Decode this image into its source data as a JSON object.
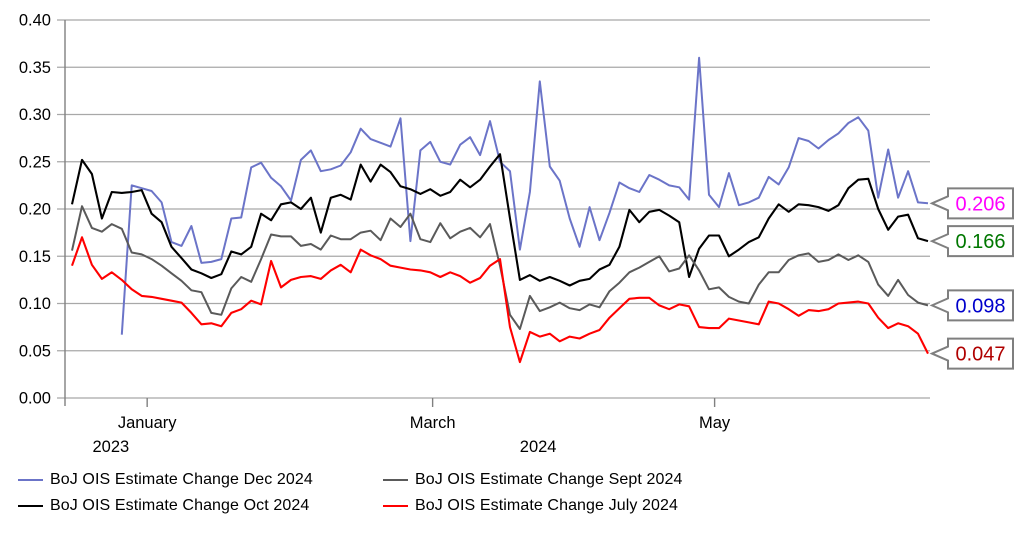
{
  "chart_data": {
    "type": "line",
    "title": "",
    "grid": true,
    "legend_position": "bottom",
    "y_axis": {
      "min": 0.0,
      "max": 0.4,
      "step": 0.05,
      "tick_labels": [
        "0.00",
        "0.05",
        "0.10",
        "0.15",
        "0.20",
        "0.25",
        "0.30",
        "0.35",
        "0.40"
      ]
    },
    "x_axis": {
      "month_ticks": [
        {
          "label": "January",
          "pos": 0.095
        },
        {
          "label": "March",
          "pos": 0.425
        },
        {
          "label": "May",
          "pos": 0.751
        }
      ],
      "year_labels": [
        {
          "label": "2023",
          "pos": 0.053
        },
        {
          "label": "2024",
          "pos": 0.547
        }
      ]
    },
    "series": [
      {
        "name": "BoJ OIS Estimate Change Dec 2024",
        "color": "#6B74C8",
        "end_label": "0.206",
        "end_label_color": "#FF00FF",
        "values": [
          null,
          null,
          null,
          null,
          null,
          0.067,
          0.225,
          0.222,
          0.219,
          0.207,
          0.165,
          0.161,
          0.182,
          0.143,
          0.144,
          0.147,
          0.19,
          0.191,
          0.244,
          0.249,
          0.233,
          0.224,
          0.209,
          0.252,
          0.262,
          0.24,
          0.242,
          0.246,
          0.26,
          0.285,
          0.274,
          0.27,
          0.266,
          0.296,
          0.166,
          0.262,
          0.271,
          0.25,
          0.247,
          0.268,
          0.276,
          0.257,
          0.293,
          0.25,
          0.24,
          0.157,
          0.218,
          0.335,
          0.245,
          0.23,
          0.19,
          0.16,
          0.202,
          0.167,
          0.196,
          0.228,
          0.222,
          0.218,
          0.236,
          0.231,
          0.225,
          0.223,
          0.21,
          0.36,
          0.215,
          0.202,
          0.238,
          0.204,
          0.207,
          0.212,
          0.234,
          0.226,
          0.244,
          0.275,
          0.272,
          0.264,
          0.273,
          0.28,
          0.291,
          0.297,
          0.283,
          0.212,
          0.263,
          0.212,
          0.24,
          0.207,
          0.206
        ]
      },
      {
        "name": "BoJ OIS Estimate Change Oct 2024",
        "color": "#000000",
        "end_label": "0.166",
        "end_label_color": "#007700",
        "values": [
          0.205,
          0.252,
          0.237,
          0.19,
          0.218,
          0.217,
          0.218,
          0.22,
          0.195,
          0.186,
          0.16,
          0.148,
          0.136,
          0.132,
          0.127,
          0.131,
          0.155,
          0.152,
          0.16,
          0.195,
          0.188,
          0.205,
          0.207,
          0.2,
          0.212,
          0.175,
          0.212,
          0.215,
          0.21,
          0.247,
          0.229,
          0.247,
          0.239,
          0.224,
          0.221,
          0.216,
          0.221,
          0.214,
          0.218,
          0.231,
          0.223,
          0.231,
          0.245,
          0.258,
          0.19,
          0.125,
          0.13,
          0.124,
          0.128,
          0.124,
          0.119,
          0.124,
          0.126,
          0.136,
          0.141,
          0.16,
          0.199,
          0.186,
          0.197,
          0.199,
          0.193,
          0.186,
          0.128,
          0.158,
          0.172,
          0.172,
          0.15,
          0.157,
          0.165,
          0.17,
          0.19,
          0.205,
          0.197,
          0.205,
          0.204,
          0.202,
          0.198,
          0.204,
          0.222,
          0.231,
          0.232,
          0.2,
          0.178,
          0.192,
          0.194,
          0.169,
          0.166
        ]
      },
      {
        "name": "BoJ OIS Estimate Change Sept 2024",
        "color": "#5A5A5A",
        "end_label": "0.098",
        "end_label_color": "#0000CC",
        "values": [
          0.156,
          0.203,
          0.18,
          0.176,
          0.184,
          0.179,
          0.154,
          0.152,
          0.147,
          0.14,
          0.132,
          0.124,
          0.114,
          0.112,
          0.09,
          0.088,
          0.116,
          0.128,
          0.123,
          0.147,
          0.173,
          0.171,
          0.171,
          0.161,
          0.163,
          0.157,
          0.172,
          0.168,
          0.168,
          0.175,
          0.177,
          0.167,
          0.19,
          0.181,
          0.195,
          0.168,
          0.165,
          0.185,
          0.169,
          0.176,
          0.18,
          0.17,
          0.184,
          0.14,
          0.088,
          0.073,
          0.108,
          0.092,
          0.096,
          0.101,
          0.095,
          0.093,
          0.099,
          0.096,
          0.113,
          0.122,
          0.133,
          0.138,
          0.144,
          0.15,
          0.134,
          0.137,
          0.151,
          0.135,
          0.115,
          0.117,
          0.107,
          0.102,
          0.1,
          0.12,
          0.133,
          0.133,
          0.146,
          0.151,
          0.153,
          0.144,
          0.146,
          0.152,
          0.146,
          0.151,
          0.144,
          0.12,
          0.108,
          0.125,
          0.109,
          0.101,
          0.098
        ]
      },
      {
        "name": "BoJ OIS Estimate Change July 2024",
        "color": "#FF0000",
        "end_label": "0.047",
        "end_label_color": "#B00000",
        "values": [
          0.14,
          0.17,
          0.141,
          0.126,
          0.133,
          0.125,
          0.115,
          0.108,
          0.107,
          0.105,
          0.103,
          0.101,
          0.09,
          0.078,
          0.079,
          0.076,
          0.09,
          0.094,
          0.103,
          0.099,
          0.145,
          0.117,
          0.125,
          0.128,
          0.129,
          0.126,
          0.135,
          0.141,
          0.133,
          0.157,
          0.151,
          0.147,
          0.14,
          0.138,
          0.136,
          0.135,
          0.133,
          0.128,
          0.133,
          0.129,
          0.122,
          0.127,
          0.14,
          0.147,
          0.075,
          0.038,
          0.07,
          0.065,
          0.068,
          0.06,
          0.065,
          0.063,
          0.068,
          0.072,
          0.085,
          0.095,
          0.105,
          0.106,
          0.106,
          0.098,
          0.094,
          0.099,
          0.097,
          0.075,
          0.074,
          0.074,
          0.084,
          0.082,
          0.08,
          0.078,
          0.102,
          0.1,
          0.094,
          0.087,
          0.093,
          0.092,
          0.094,
          0.1,
          0.101,
          0.102,
          0.1,
          0.085,
          0.074,
          0.079,
          0.076,
          0.068,
          0.047
        ]
      }
    ],
    "colors": {
      "gridline": "#A8A8A8",
      "axis": "#808080",
      "callout_border": "#7F7F7F",
      "callout_fill": "#FFFFFF",
      "tick_text": "#000000"
    }
  }
}
